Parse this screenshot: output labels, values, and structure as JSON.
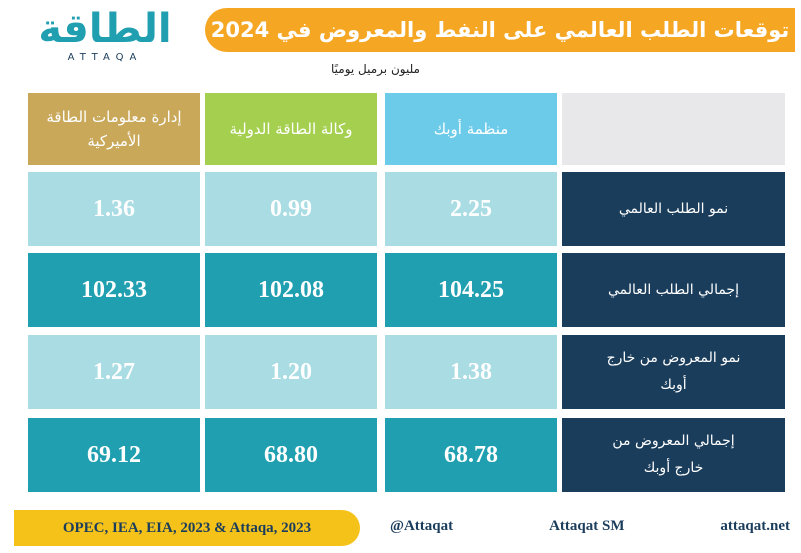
{
  "header": {
    "logo": "الطاقة",
    "logo_latin": "ATTAQA",
    "title": "توقعات الطلب العالمي على النفط والمعروض في 2024"
  },
  "unit": "مليون برميل يوميًا",
  "table": {
    "columns": [
      "منظمة أوبك",
      "وكالة الطاقة الدولية",
      "إدارة معلومات الطاقة الأميركية"
    ],
    "rows": [
      {
        "label": "نمو الطلب العالمي",
        "values": [
          "2.25",
          "0.99",
          "1.36"
        ]
      },
      {
        "label": "إجمالي الطلب العالمي",
        "values": [
          "104.25",
          "102.08",
          "102.33"
        ]
      },
      {
        "label": "نمو المعروض من خارج أوبك",
        "values": [
          "1.38",
          "1.20",
          "1.27"
        ]
      },
      {
        "label": "إجمالي المعروض من خارج أوبك",
        "values": [
          "68.78",
          "68.80",
          "69.12"
        ]
      }
    ]
  },
  "footer": {
    "source": "OPEC, IEA, EIA, 2023 & Attaqa, 2023",
    "social": [
      "@Attaqat",
      "Attaqat SM",
      "attaqat.net"
    ]
  }
}
